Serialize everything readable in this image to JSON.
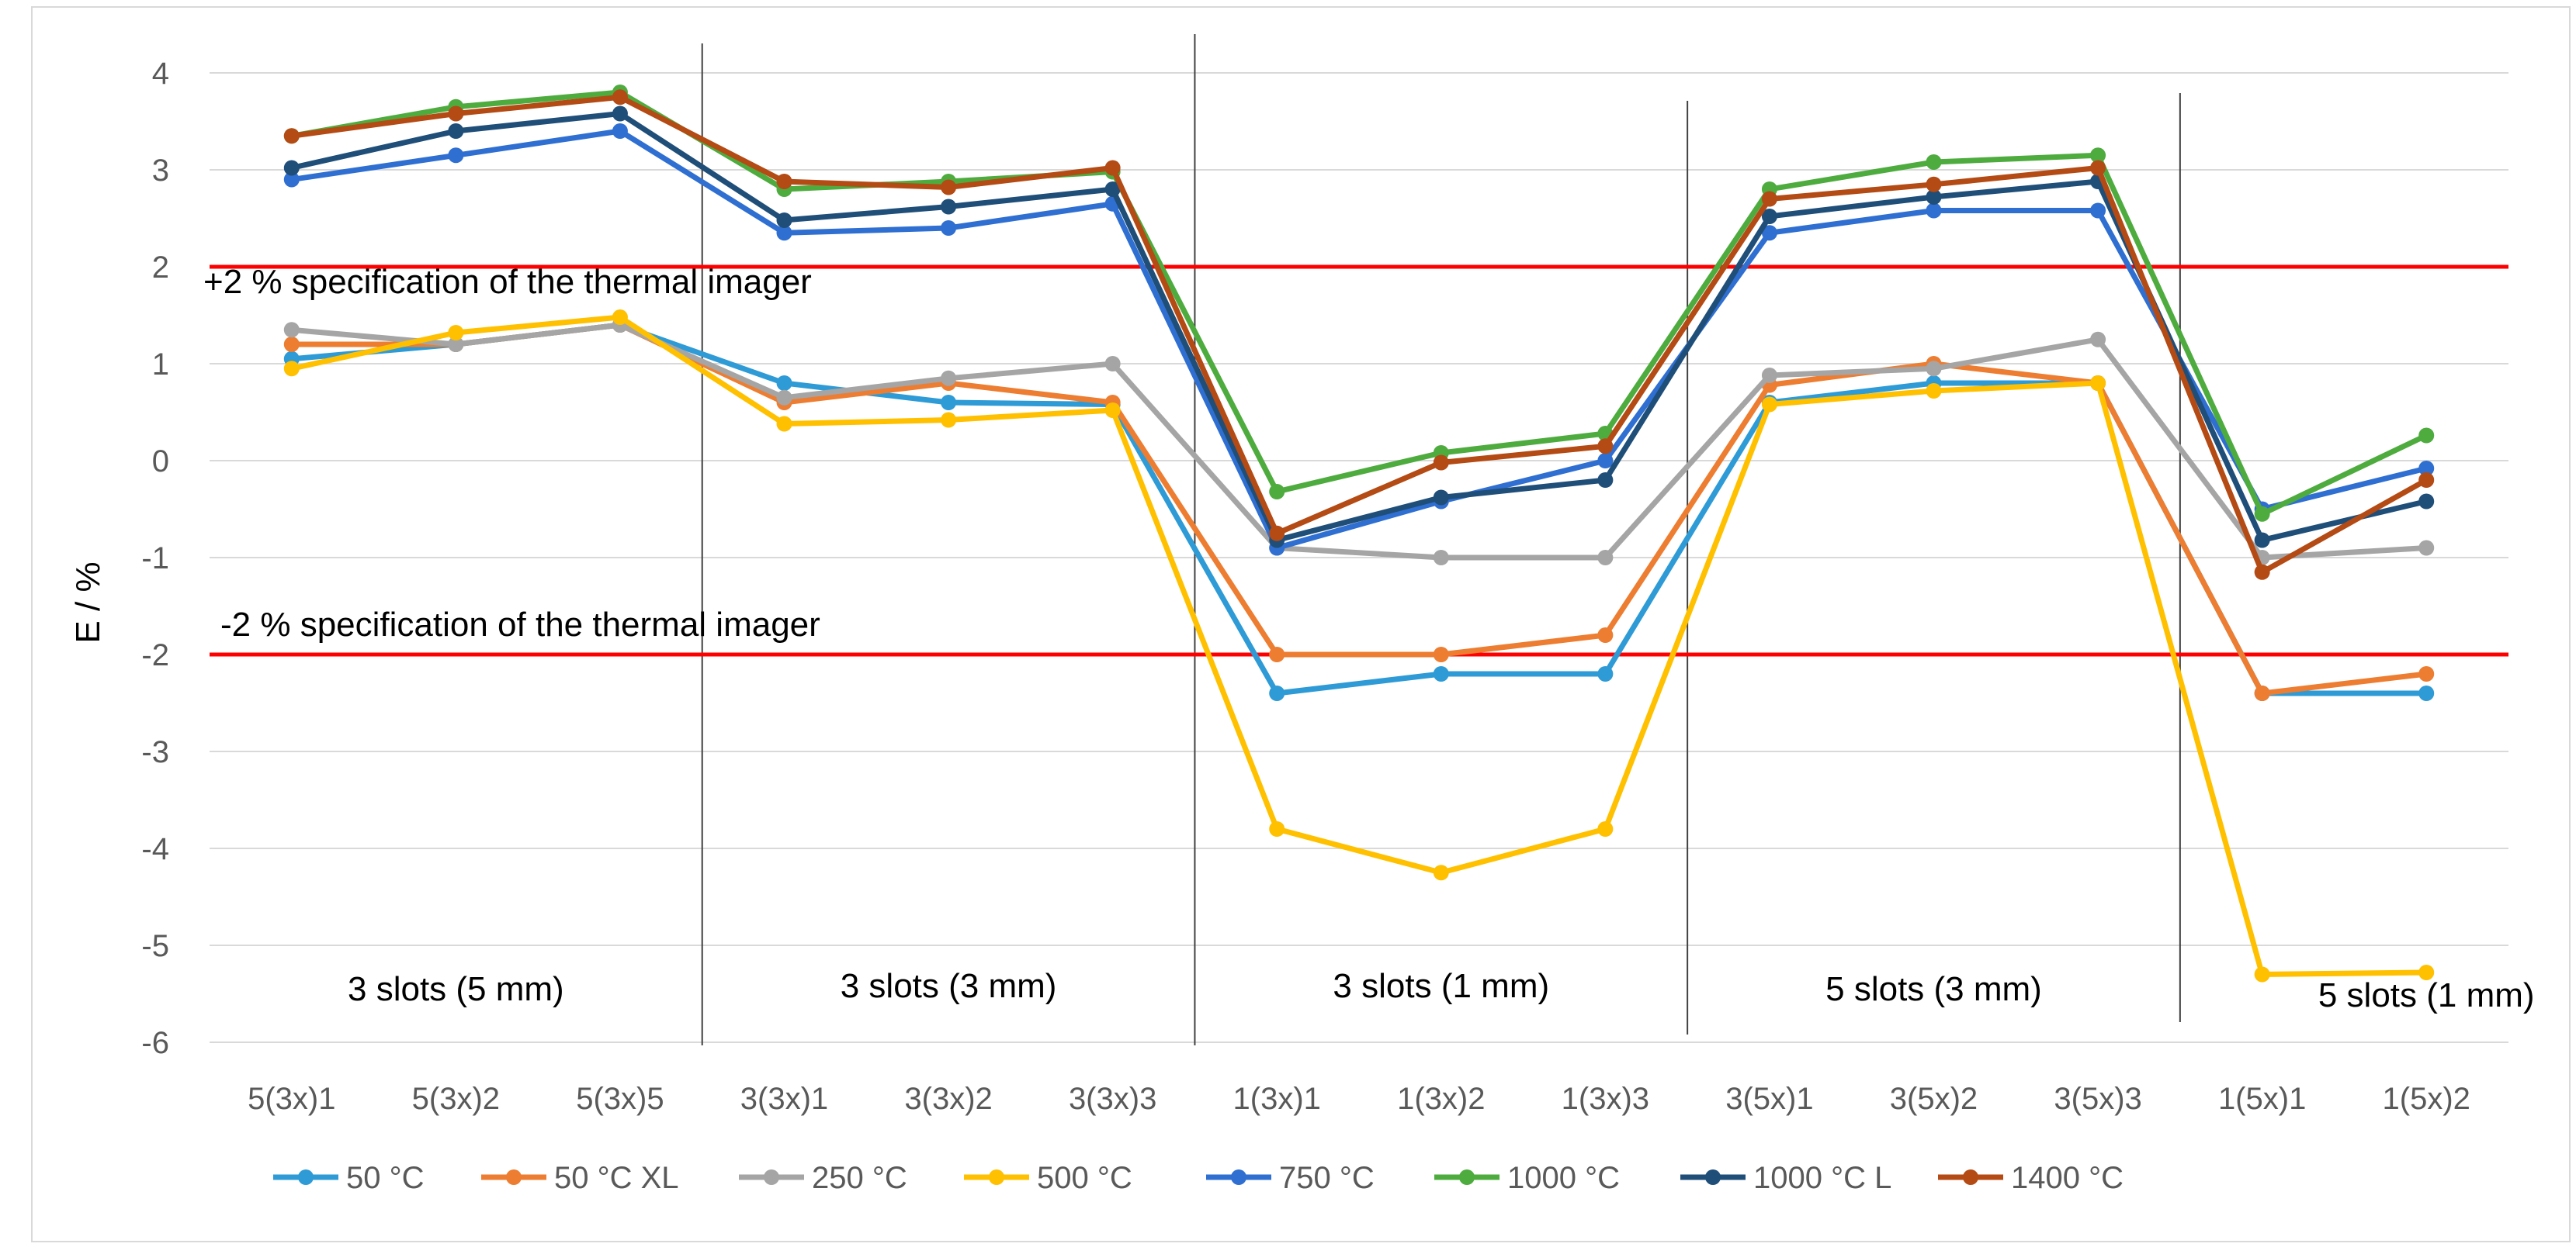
{
  "chart_data": {
    "type": "line",
    "title": "",
    "xlabel": "",
    "ylabel": "E / %",
    "ylim": [
      -6,
      4
    ],
    "yticks": [
      "4",
      "3",
      "2",
      "1",
      "0",
      "-1",
      "-2",
      "-3",
      "-4",
      "-5",
      "-6"
    ],
    "categories": [
      "5(3x)1",
      "5(3x)2",
      "5(3x)5",
      "3(3x)1",
      "3(3x)2",
      "3(3x)3",
      "1(3x)1",
      "1(3x)2",
      "1(3x)3",
      "3(5x)1",
      "3(5x)2",
      "3(5x)3",
      "1(5x)1",
      "1(5x)2"
    ],
    "grid": true,
    "legend_position": "bottom",
    "series": [
      {
        "name": "50 °C",
        "color": "#2E9BD6",
        "values": [
          1.05,
          1.2,
          1.4,
          0.8,
          0.6,
          0.58,
          -2.4,
          -2.2,
          -2.2,
          0.6,
          0.8,
          0.8,
          -2.4,
          -2.4
        ]
      },
      {
        "name": "50 °C XL",
        "color": "#ED7D31",
        "values": [
          1.2,
          1.2,
          1.4,
          0.6,
          0.8,
          0.6,
          -2.0,
          -2.0,
          -1.8,
          0.78,
          1.0,
          0.8,
          -2.4,
          -2.2
        ]
      },
      {
        "name": "250 °C",
        "color": "#A5A5A5",
        "values": [
          1.35,
          1.2,
          1.4,
          0.65,
          0.85,
          1.0,
          -0.9,
          -1.0,
          -1.0,
          0.88,
          0.95,
          1.25,
          -1.0,
          -0.9
        ]
      },
      {
        "name": "500 °C",
        "color": "#FFC000",
        "values": [
          0.95,
          1.32,
          1.48,
          0.38,
          0.42,
          0.52,
          -3.8,
          -4.25,
          -3.8,
          0.58,
          0.72,
          0.8,
          -5.3,
          -5.28
        ]
      },
      {
        "name": "750 °C",
        "color": "#2F6FD1",
        "values": [
          2.9,
          3.15,
          3.4,
          2.35,
          2.4,
          2.65,
          -0.9,
          -0.42,
          0.0,
          2.35,
          2.58,
          2.58,
          -0.5,
          -0.08
        ]
      },
      {
        "name": "1000 °C",
        "color": "#4EAC3F",
        "values": [
          3.35,
          3.65,
          3.8,
          2.8,
          2.88,
          2.98,
          -0.32,
          0.08,
          0.28,
          2.8,
          3.08,
          3.15,
          -0.55,
          0.26
        ]
      },
      {
        "name": "1000 °C L",
        "color": "#1F4E79",
        "values": [
          3.02,
          3.4,
          3.58,
          2.48,
          2.62,
          2.8,
          -0.82,
          -0.38,
          -0.2,
          2.52,
          2.72,
          2.88,
          -0.82,
          -0.42
        ]
      },
      {
        "name": "1400 °C",
        "color": "#B44A14",
        "values": [
          3.35,
          3.58,
          3.75,
          2.88,
          2.82,
          3.02,
          -0.75,
          -0.02,
          0.15,
          2.7,
          2.85,
          3.02,
          -1.15,
          -0.2
        ]
      }
    ],
    "reference_lines": [
      {
        "value": 2,
        "color": "#FF0000",
        "label": "+2 % specification of the thermal imager"
      },
      {
        "value": -2,
        "color": "#FF0000",
        "label": "-2 % specification of the thermal imager"
      }
    ],
    "groups": [
      {
        "label": "3 slots (5 mm)",
        "start": 0,
        "end": 2
      },
      {
        "label": "3 slots (3 mm)",
        "start": 3,
        "end": 5
      },
      {
        "label": "3 slots (1 mm)",
        "start": 6,
        "end": 8
      },
      {
        "label": "5 slots (3 mm)",
        "start": 9,
        "end": 11
      },
      {
        "label": "5 slots (1 mm)",
        "start": 12,
        "end": 13
      }
    ]
  }
}
